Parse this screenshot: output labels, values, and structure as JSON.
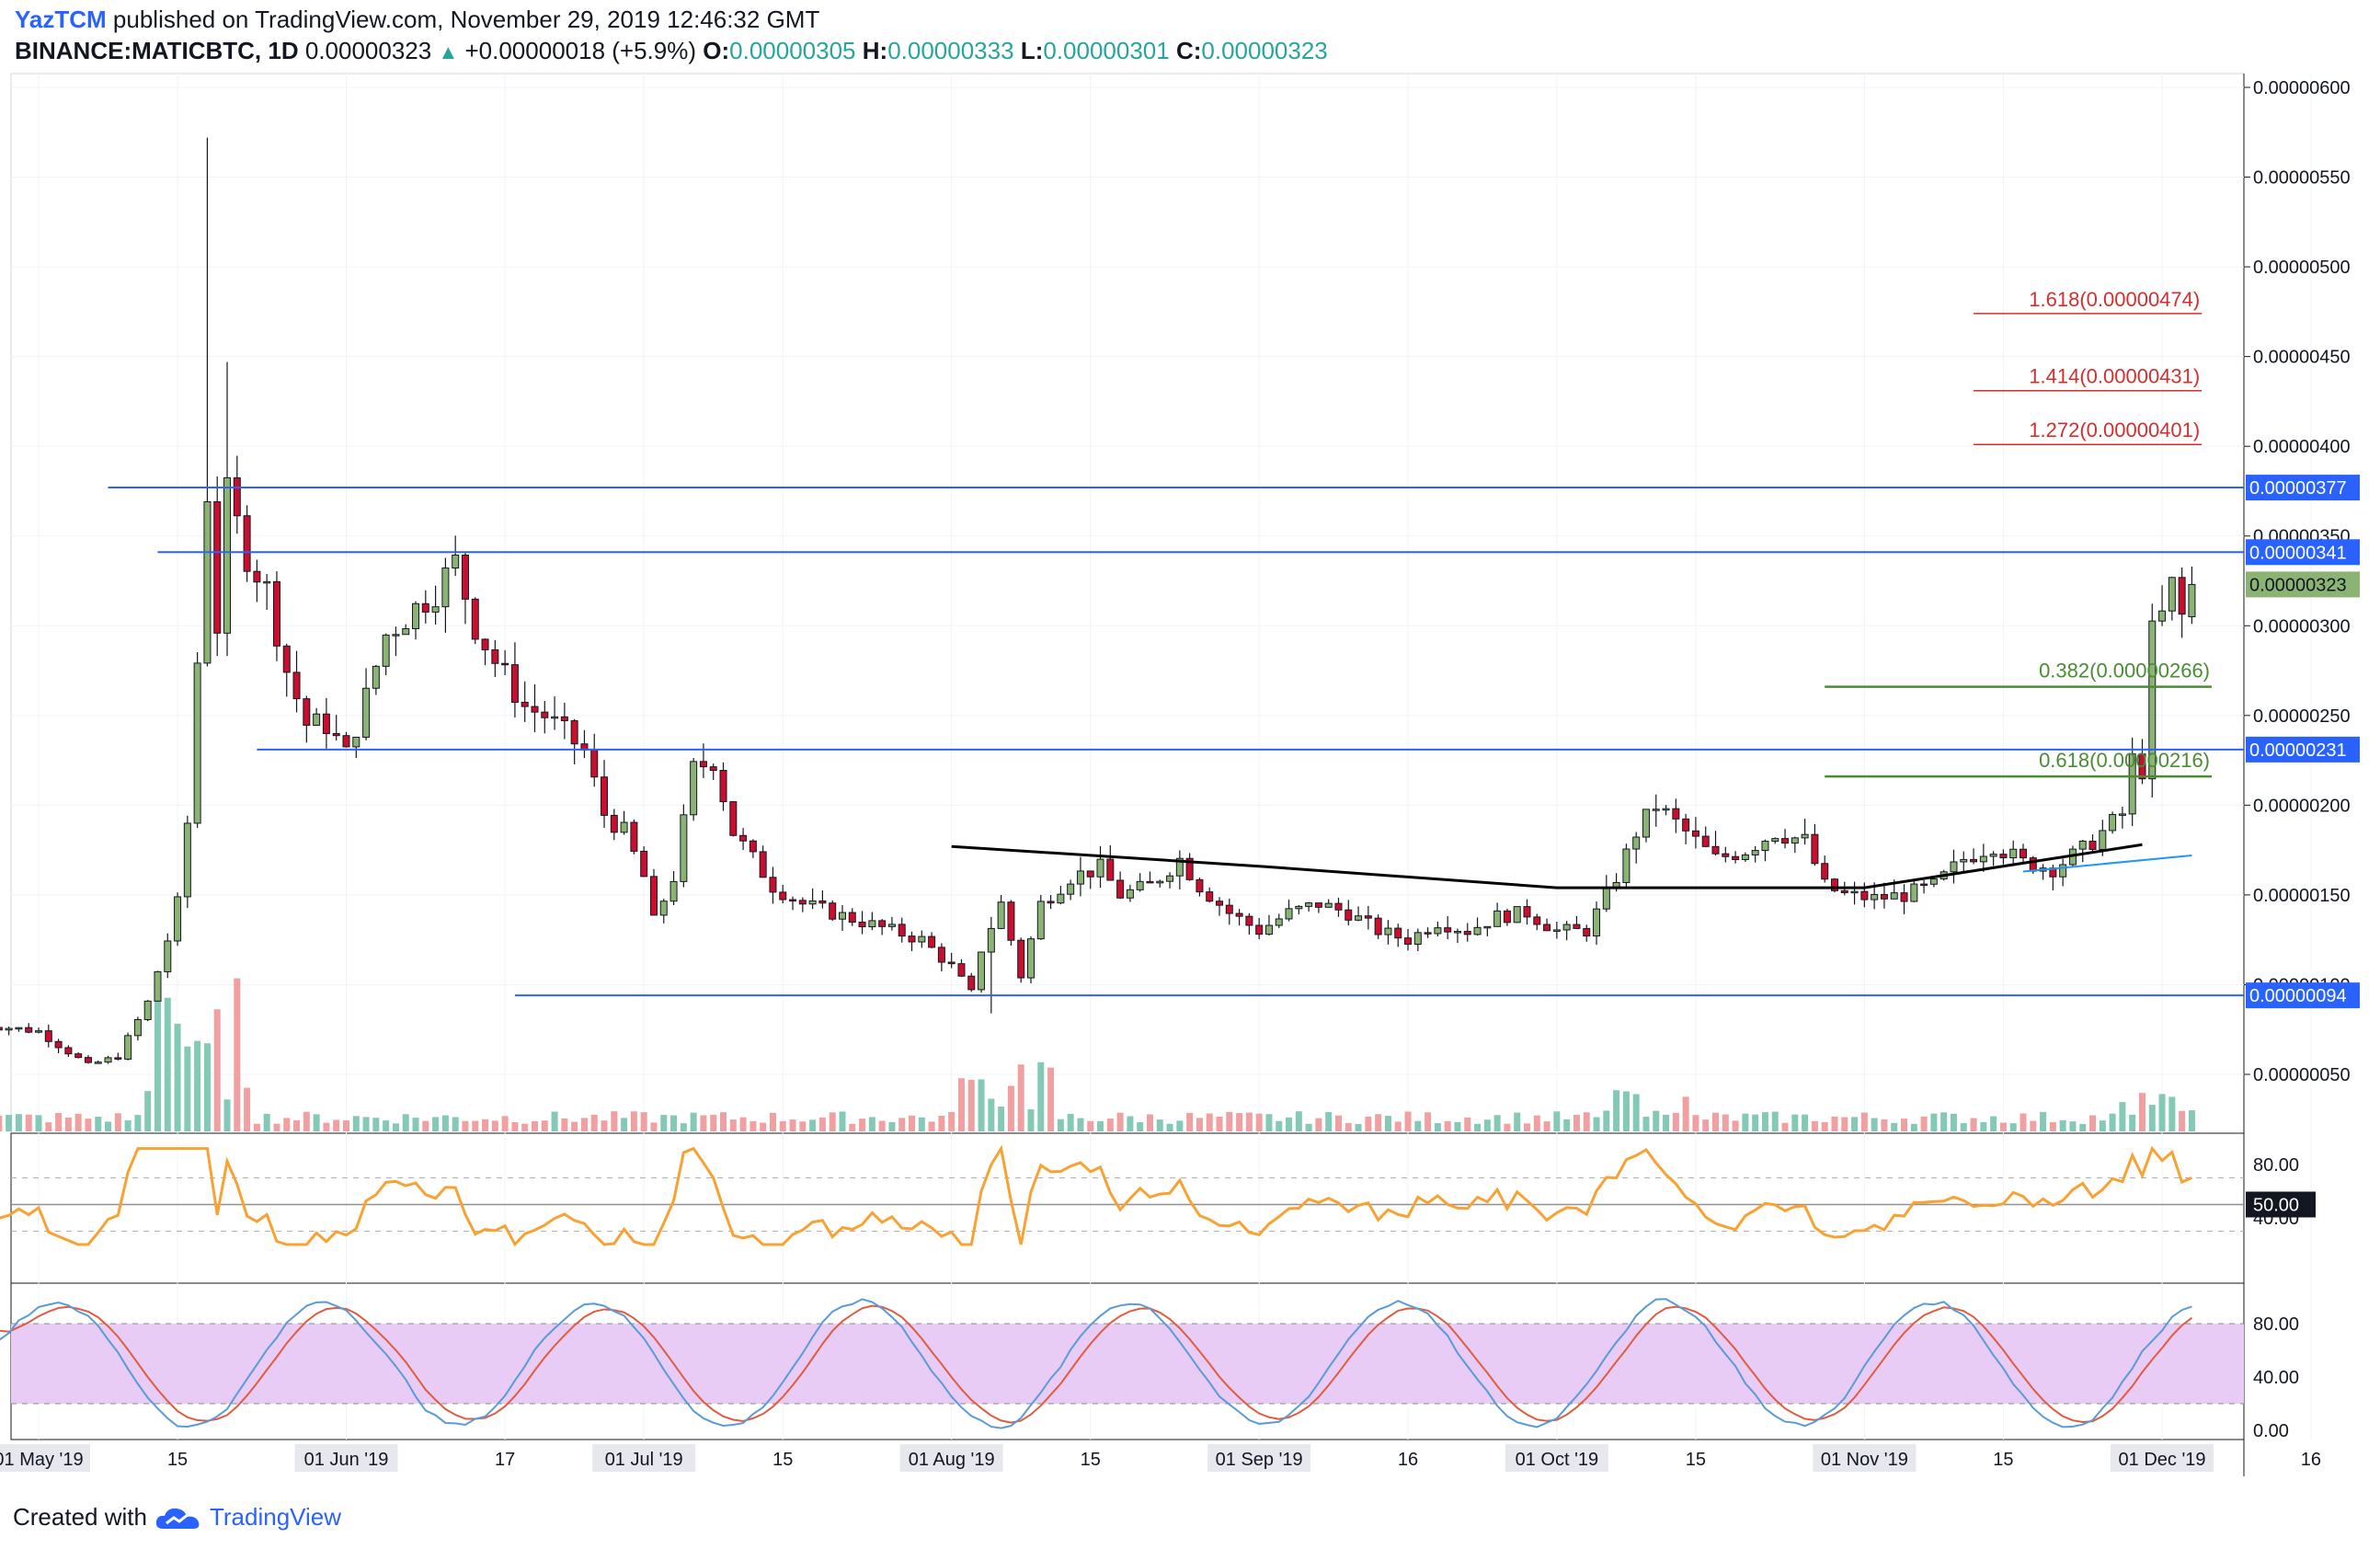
{
  "header": {
    "author": "YazTCM",
    "published": "published on TradingView.com, November 29, 2019 12:46:32 GMT",
    "symbol": "BINANCE:MATICBTC, 1D",
    "last": "0.00000323",
    "change": "+0.00000018 (+5.9%)",
    "o_label": "O:",
    "o": "0.00000305",
    "h_label": "H:",
    "h": "0.00000333",
    "l_label": "L:",
    "l": "0.00000301",
    "c_label": "C:",
    "c": "0.00000323"
  },
  "footer": {
    "created": "Created with",
    "brand": "TradingView"
  },
  "colors": {
    "up": "#8bb474",
    "down": "#c8102e",
    "vol_up": "#84c9b5",
    "vol_down": "#f0a0a0",
    "hline": "#2962ff",
    "fib_ext": "#d32f2f",
    "fib_ret": "#4a8c34",
    "ma": "#000000",
    "rsi": "#f7a233",
    "k": "#5b9bd5",
    "d": "#e05c40",
    "band": "#e8ccf5"
  },
  "chart_data": [
    {
      "type": "candlestick",
      "title": "",
      "ylim": [
        1e-07,
        6e-06
      ],
      "price_ticks": [
        "0.00000600",
        "0.00000550",
        "0.00000500",
        "0.00000450",
        "0.00000400",
        "0.00000350",
        "0.00000300",
        "0.00000250",
        "0.00000200",
        "0.00000150",
        "0.00000100",
        "0.00000050"
      ],
      "time_labels": [
        "01 May '19",
        "15",
        "01 Jun '19",
        "17",
        "01 Jul '19",
        "15",
        "01 Aug '19",
        "15",
        "01 Sep '19",
        "16",
        "01 Oct '19",
        "15",
        "01 Nov '19",
        "15",
        "01 Dec '19",
        "16"
      ],
      "horizontal_levels": [
        {
          "value": 3.77e-06,
          "label": "0.00000377"
        },
        {
          "value": 3.41e-06,
          "label": "0.00000341"
        },
        {
          "value": 2.31e-06,
          "label": "0.00000231"
        },
        {
          "value": 9.4e-07,
          "label": "0.00000094"
        }
      ],
      "fib_extensions": [
        {
          "label": "1.618(0.00000474)",
          "value": 4.74e-06
        },
        {
          "label": "1.414(0.00000431)",
          "value": 4.31e-06
        },
        {
          "label": "1.272(0.00000401)",
          "value": 4.01e-06
        }
      ],
      "fib_retracements": [
        {
          "label": "0.382(0.00000266)",
          "value": 2.66e-06
        },
        {
          "label": "0.618(0.00000216)",
          "value": 2.16e-06
        }
      ],
      "last_price_label": "0.00000323",
      "key_prices": {
        "start": 7.8e-07,
        "may_peak_high": 5.72e-06,
        "may_peak_close": 3.75e-06,
        "june_high": 3.44e-06,
        "june_low": 2.29e-06,
        "aug_low": 8.4e-07,
        "oct_high": 2.1e-06,
        "nov_high": 3.44e-06,
        "last_close": 3.23e-06
      },
      "moving_average_approx": [
        {
          "date": "2019-08-01",
          "value": 1.77e-06
        },
        {
          "date": "2019-09-01",
          "value": 1.66e-06
        },
        {
          "date": "2019-10-01",
          "value": 1.54e-06
        },
        {
          "date": "2019-11-01",
          "value": 1.54e-06
        },
        {
          "date": "2019-11-29",
          "value": 1.78e-06
        }
      ]
    },
    {
      "type": "line",
      "name": "RSI",
      "ylim": [
        0,
        100
      ],
      "ticks": [
        "80.00",
        "40.00"
      ],
      "level_label": "50.00",
      "levels": [
        30,
        50,
        70
      ]
    },
    {
      "type": "line",
      "name": "Stochastic RSI",
      "ylim": [
        0,
        100
      ],
      "ticks": [
        "80.00",
        "40.00",
        "0.00"
      ],
      "band": [
        20,
        80
      ]
    }
  ]
}
